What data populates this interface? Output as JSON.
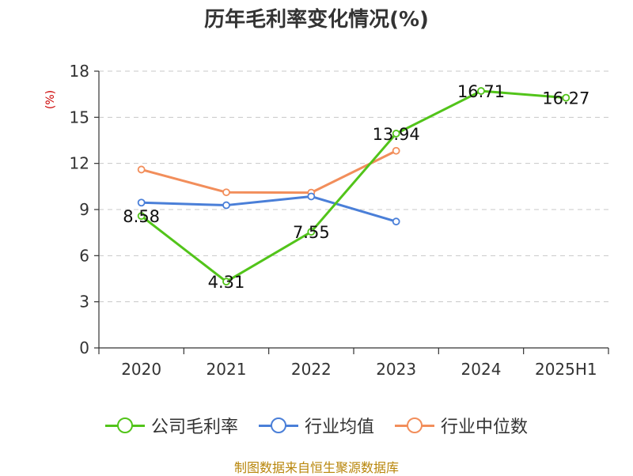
{
  "title": "历年毛利率变化情况(%)",
  "source": "制图数据来自恒生聚源数据库",
  "chart_data": {
    "type": "line",
    "title": "历年毛利率变化情况(%)",
    "ylabel": "(%)",
    "xlabel": "",
    "categories": [
      "2020",
      "2021",
      "2022",
      "2023",
      "2024",
      "2025H1"
    ],
    "ylim": [
      0,
      18
    ],
    "yticks": [
      0,
      3,
      6,
      9,
      12,
      15,
      18
    ],
    "grid": true,
    "legend_position": "bottom",
    "series": [
      {
        "name": "公司毛利率",
        "color": "#52c41a",
        "values": [
          8.58,
          4.31,
          7.55,
          13.94,
          16.71,
          16.27
        ],
        "labels": [
          "8.58",
          "4.31",
          "7.55",
          "13.94",
          "16.71",
          "16.27"
        ]
      },
      {
        "name": "行业均值",
        "color": "#4a7fd8",
        "values": [
          9.45,
          9.28,
          9.85,
          8.22,
          null,
          null
        ]
      },
      {
        "name": "行业中位数",
        "color": "#f28e5b",
        "values": [
          11.6,
          10.12,
          10.1,
          12.82,
          null,
          null
        ]
      }
    ]
  }
}
